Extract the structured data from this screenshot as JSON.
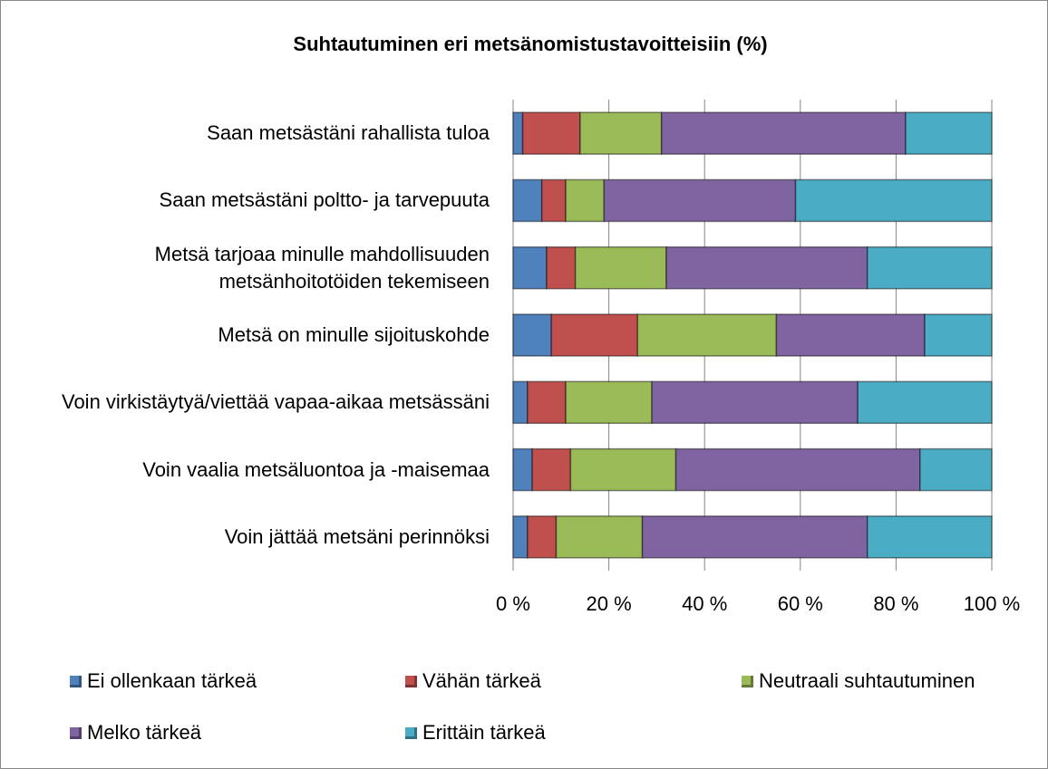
{
  "chart_data": {
    "type": "stacked_barh",
    "title": "Suhtautuminen eri metsänomistustavoitteisiin (%)",
    "categories": [
      "Saan metsästäni rahallista tuloa",
      "Saan metsästäni poltto- ja tarvepuuta",
      "Metsä tarjoaa minulle mahdollisuuden metsänhoitotöiden tekemiseen",
      "Metsä on minulle sijoituskohde",
      "Voin virkistäytyä/viettää vapaa-aikaa metsässäni",
      "Voin vaalia metsäluontoa ja -maisemaa",
      "Voin jättää metsäni perinnöksi"
    ],
    "series": [
      {
        "name": "Ei ollenkaan tärkeä",
        "color": "#4f81bd",
        "values": [
          2,
          6,
          7,
          8,
          3,
          4,
          3
        ]
      },
      {
        "name": "Vähän tärkeä",
        "color": "#c0504d",
        "values": [
          12,
          5,
          6,
          18,
          8,
          8,
          6
        ]
      },
      {
        "name": "Neutraali suhtautuminen",
        "color": "#9bbb59",
        "values": [
          17,
          8,
          19,
          29,
          18,
          22,
          18
        ]
      },
      {
        "name": "Melko tärkeä",
        "color": "#8064a2",
        "values": [
          51,
          40,
          42,
          31,
          43,
          51,
          47
        ]
      },
      {
        "name": "Erittäin tärkeä",
        "color": "#4bacc6",
        "values": [
          18,
          41,
          26,
          14,
          28,
          15,
          26
        ]
      }
    ],
    "xlim": [
      0,
      100
    ],
    "xticks": [
      {
        "value": 0,
        "label": "0 %"
      },
      {
        "value": 20,
        "label": "20 %"
      },
      {
        "value": 40,
        "label": "40 %"
      },
      {
        "value": 60,
        "label": "60 %"
      },
      {
        "value": 80,
        "label": "80 %"
      },
      {
        "value": 100,
        "label": "100 %"
      }
    ],
    "grid": true,
    "legend": "bottom"
  }
}
